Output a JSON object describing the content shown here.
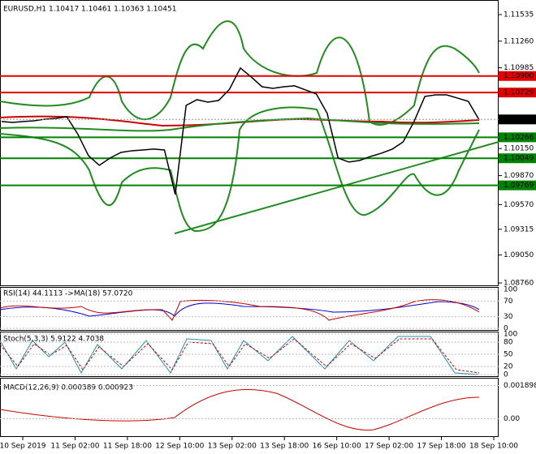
{
  "header": "EURUSD,H1  1.10417 1.10461 1.10363 1.10451",
  "chart_data": {
    "type": "line",
    "color": "#000000",
    "values": [
      1.10429,
      1.1042,
      1.10429,
      1.10437,
      1.10454,
      1.10462,
      1.10479,
      1.10303,
      1.10077,
      1.09976,
      1.10052,
      1.1011,
      1.10127,
      1.10135,
      1.10144,
      1.10135,
      1.09675,
      1.10596,
      1.10655,
      1.1063,
      1.10647,
      1.10764,
      1.10982,
      1.1089,
      1.10789,
      1.10772,
      1.10789,
      1.10798,
      1.10756,
      1.10714,
      1.10513,
      1.10052,
      1.1001,
      1.10027,
      1.10068,
      1.10102,
      1.10144,
      1.10219,
      1.10429,
      1.10689,
      1.10705,
      1.10705,
      1.10672,
      1.10638,
      1.10446
    ],
    "ylim": [
      1.0876,
      1.11535
    ],
    "yticks": [
      {
        "value": 1.11535,
        "label": "1.11535"
      },
      {
        "value": 1.1126,
        "label": "1.11260"
      },
      {
        "value": 1.10985,
        "label": "1.10985"
      },
      {
        "value": 1.1015,
        "label": "1.10150"
      },
      {
        "value": 1.0987,
        "label": "1.09870"
      },
      {
        "value": 1.0957,
        "label": "1.09570"
      },
      {
        "value": 1.09315,
        "label": "1.09315"
      },
      {
        "value": 1.0905,
        "label": "1.09050"
      },
      {
        "value": 1.0876,
        "label": "1.08760"
      }
    ],
    "levels": [
      {
        "value": 1.109,
        "label": "1.10900",
        "color": "#e00000"
      },
      {
        "value": 1.10729,
        "label": "1.10729",
        "color": "#e00000"
      },
      {
        "value": 1.10266,
        "label": "1.10266",
        "color": "#008000"
      },
      {
        "value": 1.10049,
        "label": "1.10049",
        "color": "#008000"
      },
      {
        "value": 1.09769,
        "label": "1.09769",
        "color": "#008000"
      }
    ],
    "current": {
      "value": 1.10451,
      "label": "1.10451"
    },
    "x_labels": [
      "10 Sep 2019",
      "11 Sep 02:00",
      "11 Sep 18:00",
      "12 Sep 10:00",
      "13 Sep 02:00",
      "13 Sep 18:00",
      "16 Sep 10:00",
      "17 Sep 02:00",
      "17 Sep 18:00",
      "18 Sep 10:00"
    ]
  },
  "rsi": {
    "label": "RSI(14) 44.1113  ->MA(18) 57.0720",
    "ylim": [
      0,
      100
    ],
    "yticks": [
      100,
      70,
      30,
      0
    ]
  },
  "stoch": {
    "label": "Stoch(5,3,3) 5.9122 4.7038",
    "ylim": [
      0,
      100
    ],
    "yticks": [
      100,
      80,
      50,
      20,
      0
    ]
  },
  "macd": {
    "label": "MACD(12,26,9) 0.000389 0.000923",
    "ylim": [
      -0.0009,
      0.0022
    ],
    "yticks": [
      0.001898,
      {
        "value": 0,
        "label": "0.00"
      }
    ]
  }
}
